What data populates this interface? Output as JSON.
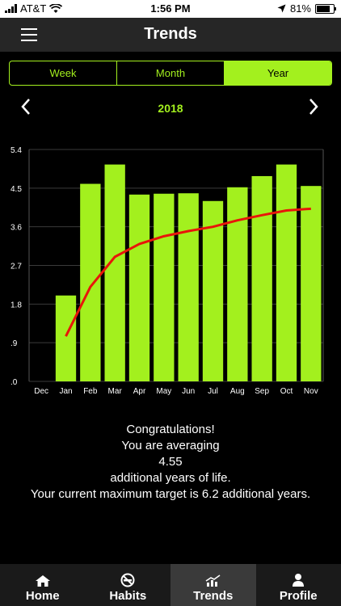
{
  "status_bar": {
    "carrier": "AT&T",
    "time": "1:56 PM",
    "battery": "81%",
    "battery_level": 0.81
  },
  "header": {
    "title": "Trends"
  },
  "segments": [
    {
      "label": "Week",
      "active": false
    },
    {
      "label": "Month",
      "active": false
    },
    {
      "label": "Year",
      "active": true
    }
  ],
  "year_nav": {
    "year": "2018"
  },
  "chart_data": {
    "type": "bar",
    "categories": [
      "Dec",
      "Jan",
      "Feb",
      "Mar",
      "Apr",
      "May",
      "Jun",
      "Jul",
      "Aug",
      "Sep",
      "Oct",
      "Nov"
    ],
    "y_tick_labels": [
      ".0",
      ".9",
      "1.8",
      "2.7",
      "3.6",
      "4.5",
      "5.4"
    ],
    "ylim": [
      0,
      5.4
    ],
    "series": [
      {
        "values": [
          null,
          2.0,
          4.6,
          5.05,
          4.35,
          4.37,
          4.38,
          4.2,
          4.52,
          4.78,
          5.05,
          4.55
        ]
      },
      {
        "values": [
          null,
          1.05,
          2.2,
          2.9,
          3.2,
          3.38,
          3.5,
          3.6,
          3.75,
          3.87,
          3.98,
          4.02
        ]
      }
    ],
    "bar_color": "#a3f01e",
    "line_color": "#e8160a",
    "grid": true
  },
  "message": {
    "line1": "Congratulations!",
    "line2": "You are averaging",
    "value": "4.55",
    "line3": "additional years of life.",
    "line4": "Your current maximum target is 6.2 additional years."
  },
  "tabs": [
    {
      "label": "Home",
      "icon": "home-icon",
      "active": false
    },
    {
      "label": "Habits",
      "icon": "no-smoking-icon",
      "active": false
    },
    {
      "label": "Trends",
      "icon": "trend-chart-icon",
      "active": true
    },
    {
      "label": "Profile",
      "icon": "person-icon",
      "active": false
    }
  ],
  "colors": {
    "accent": "#a3f01e",
    "trend_line": "#e8160a",
    "background": "#000000"
  }
}
